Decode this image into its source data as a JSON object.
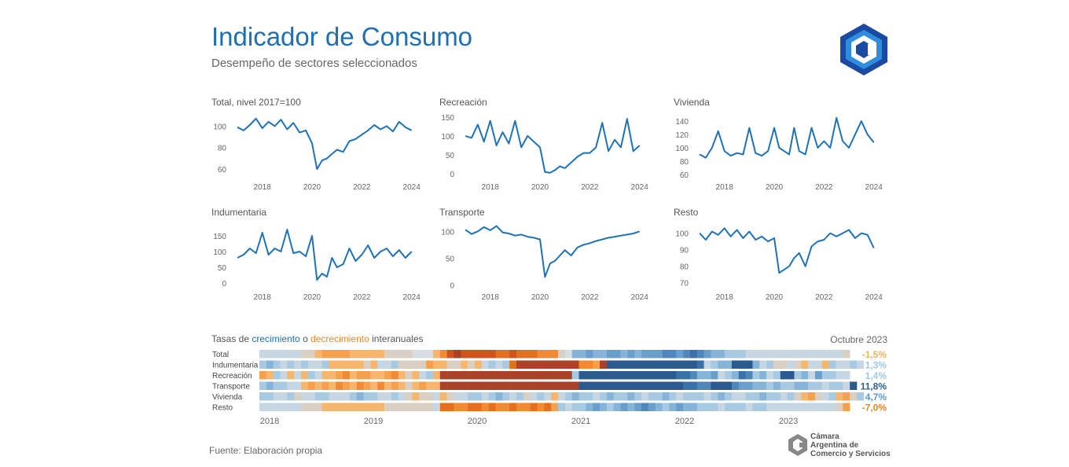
{
  "header": {
    "title": "Indicador de Consumo",
    "subtitle": "Desempeño de sectores seleccionados"
  },
  "colors": {
    "line": "#1f72b5",
    "title": "#1f6fb2",
    "growth": "#1f6fb2",
    "decline": "#e8862b"
  },
  "chart_data": [
    {
      "type": "line",
      "title": "Total, nivel 2017=100",
      "x_ticks": [
        "2018",
        "2020",
        "2022",
        "2024"
      ],
      "y_ticks": [
        60,
        80,
        100
      ],
      "ylim": [
        52,
        112
      ],
      "xlim": [
        2017.0,
        2024.2
      ],
      "series": [
        {
          "x": [
            2017.0,
            2017.25,
            2017.5,
            2017.75,
            2018.0,
            2018.25,
            2018.5,
            2018.75,
            2019.0,
            2019.25,
            2019.5,
            2019.75,
            2020.0,
            2020.2,
            2020.4,
            2020.6,
            2020.8,
            2021.0,
            2021.25,
            2021.5,
            2021.75,
            2022.0,
            2022.25,
            2022.5,
            2022.75,
            2023.0,
            2023.25,
            2023.5,
            2023.75,
            2024.0
          ],
          "values": [
            99,
            96,
            101,
            107,
            98,
            104,
            100,
            106,
            97,
            103,
            94,
            96,
            84,
            60,
            68,
            70,
            74,
            78,
            76,
            86,
            88,
            92,
            96,
            101,
            97,
            100,
            95,
            104,
            99,
            96
          ]
        }
      ]
    },
    {
      "type": "line",
      "title": "Recreación",
      "x_ticks": [
        "2018",
        "2020",
        "2022",
        "2024"
      ],
      "y_ticks": [
        0,
        50,
        100,
        150
      ],
      "ylim": [
        -10,
        160
      ],
      "xlim": [
        2017.0,
        2024.2
      ],
      "series": [
        {
          "x": [
            2017.0,
            2017.25,
            2017.5,
            2017.75,
            2018.0,
            2018.25,
            2018.5,
            2018.75,
            2019.0,
            2019.25,
            2019.5,
            2019.75,
            2020.0,
            2020.2,
            2020.4,
            2020.6,
            2020.8,
            2021.0,
            2021.25,
            2021.5,
            2021.75,
            2022.0,
            2022.25,
            2022.5,
            2022.75,
            2023.0,
            2023.25,
            2023.5,
            2023.75,
            2024.0
          ],
          "values": [
            100,
            95,
            130,
            85,
            140,
            75,
            110,
            80,
            140,
            70,
            100,
            85,
            70,
            5,
            3,
            10,
            20,
            15,
            30,
            45,
            55,
            55,
            70,
            135,
            60,
            90,
            70,
            145,
            60,
            75
          ]
        }
      ]
    },
    {
      "type": "line",
      "title": "Vivienda",
      "x_ticks": [
        "2018",
        "2020",
        "2022",
        "2024"
      ],
      "y_ticks": [
        60,
        80,
        100,
        120,
        140
      ],
      "ylim": [
        55,
        152
      ],
      "xlim": [
        2017.0,
        2024.2
      ],
      "series": [
        {
          "x": [
            2017.0,
            2017.25,
            2017.5,
            2017.75,
            2018.0,
            2018.25,
            2018.5,
            2018.75,
            2019.0,
            2019.25,
            2019.5,
            2019.75,
            2020.0,
            2020.2,
            2020.4,
            2020.6,
            2020.8,
            2021.0,
            2021.25,
            2021.5,
            2021.75,
            2022.0,
            2022.25,
            2022.5,
            2022.75,
            2023.0,
            2023.25,
            2023.5,
            2023.75,
            2024.0
          ],
          "values": [
            90,
            85,
            100,
            125,
            95,
            88,
            92,
            90,
            130,
            92,
            88,
            95,
            130,
            100,
            95,
            90,
            130,
            95,
            90,
            130,
            100,
            110,
            100,
            145,
            110,
            100,
            120,
            140,
            120,
            108
          ]
        }
      ]
    },
    {
      "type": "line",
      "title": "Indumentaria",
      "x_ticks": [
        "2018",
        "2020",
        "2022",
        "2024"
      ],
      "y_ticks": [
        0,
        50,
        100,
        150
      ],
      "ylim": [
        -15,
        190
      ],
      "xlim": [
        2017.0,
        2024.2
      ],
      "series": [
        {
          "x": [
            2017.0,
            2017.25,
            2017.5,
            2017.75,
            2018.0,
            2018.25,
            2018.5,
            2018.75,
            2019.0,
            2019.25,
            2019.5,
            2019.75,
            2020.0,
            2020.2,
            2020.4,
            2020.6,
            2020.8,
            2021.0,
            2021.25,
            2021.5,
            2021.75,
            2022.0,
            2022.25,
            2022.5,
            2022.75,
            2023.0,
            2023.25,
            2023.5,
            2023.75,
            2024.0
          ],
          "values": [
            80,
            90,
            110,
            95,
            160,
            90,
            110,
            100,
            170,
            95,
            100,
            85,
            150,
            10,
            30,
            20,
            80,
            50,
            60,
            110,
            70,
            90,
            120,
            80,
            100,
            110,
            85,
            105,
            80,
            100
          ]
        }
      ]
    },
    {
      "type": "line",
      "title": "Transporte",
      "x_ticks": [
        "2018",
        "2020",
        "2022",
        "2024"
      ],
      "y_ticks": [
        0,
        50,
        100
      ],
      "ylim": [
        -5,
        115
      ],
      "xlim": [
        2017.0,
        2024.2
      ],
      "series": [
        {
          "x": [
            2017.0,
            2017.25,
            2017.5,
            2017.75,
            2018.0,
            2018.25,
            2018.5,
            2018.75,
            2019.0,
            2019.25,
            2019.5,
            2019.75,
            2020.0,
            2020.2,
            2020.4,
            2020.6,
            2020.8,
            2021.0,
            2021.25,
            2021.5,
            2021.75,
            2022.0,
            2022.25,
            2022.5,
            2022.75,
            2023.0,
            2023.25,
            2023.5,
            2023.75,
            2024.0
          ],
          "values": [
            103,
            95,
            100,
            108,
            102,
            110,
            98,
            96,
            92,
            94,
            90,
            88,
            85,
            15,
            40,
            45,
            55,
            65,
            55,
            70,
            75,
            78,
            82,
            85,
            88,
            90,
            92,
            94,
            96,
            100
          ]
        }
      ]
    },
    {
      "type": "line",
      "title": "Resto",
      "x_ticks": [
        "2018",
        "2020",
        "2022",
        "2024"
      ],
      "y_ticks": [
        70,
        80,
        90,
        100
      ],
      "ylim": [
        67,
        106
      ],
      "xlim": [
        2017.0,
        2024.2
      ],
      "series": [
        {
          "x": [
            2017.0,
            2017.25,
            2017.5,
            2017.75,
            2018.0,
            2018.25,
            2018.5,
            2018.75,
            2019.0,
            2019.25,
            2019.5,
            2019.75,
            2020.0,
            2020.2,
            2020.4,
            2020.6,
            2020.8,
            2021.0,
            2021.25,
            2021.5,
            2021.75,
            2022.0,
            2022.25,
            2022.5,
            2022.75,
            2023.0,
            2023.25,
            2023.5,
            2023.75,
            2024.0
          ],
          "values": [
            100,
            96,
            101,
            99,
            103,
            98,
            102,
            97,
            101,
            96,
            98,
            95,
            97,
            76,
            78,
            80,
            85,
            88,
            80,
            92,
            95,
            96,
            100,
            98,
            100,
            102,
            97,
            100,
            99,
            91
          ]
        }
      ]
    },
    {
      "type": "heatmap",
      "title_parts": [
        "Tasas de ",
        "crecimiento",
        " o ",
        "decrecimiento",
        " interanuales"
      ],
      "date": "Octubre 2023",
      "x_ticks": [
        "2018",
        "2019",
        "2020",
        "2021",
        "2022",
        "2023"
      ],
      "rows": [
        {
          "name": "Total",
          "last": "-1,5%",
          "last_color": "#f0b262",
          "values": [
            1,
            1,
            1,
            1,
            1,
            1,
            -1,
            -1,
            -2,
            -3,
            -3,
            -3,
            -3,
            -2,
            -2,
            -2,
            -2,
            -2,
            -1,
            -1,
            -1,
            -1,
            0,
            0,
            0,
            -2,
            -4,
            -6,
            -7,
            -6,
            -6,
            -6,
            -6,
            -6,
            -5,
            -5,
            -6,
            -5,
            -5,
            -5,
            -4,
            -4,
            -4,
            -1,
            0,
            3,
            3,
            4,
            3,
            3,
            4,
            4,
            3,
            4,
            3,
            4,
            4,
            4,
            5,
            5,
            4,
            5,
            6,
            5,
            4,
            3,
            3,
            2,
            2,
            2,
            1,
            1,
            1,
            1,
            1,
            1,
            1,
            1,
            1,
            1,
            1,
            1,
            1,
            1,
            -1
          ]
        },
        {
          "name": "Indumentaria",
          "last": "1,3%",
          "last_color": "#9ecae1",
          "values": [
            2,
            3,
            2,
            1,
            2,
            1,
            2,
            1,
            1,
            2,
            -2,
            -2,
            -2,
            -2,
            -2,
            -1,
            -2,
            1,
            1,
            2,
            -1,
            -1,
            -1,
            -1,
            -3,
            -2,
            -2,
            -1,
            -1,
            -2,
            -1,
            -2,
            1,
            2,
            1,
            2,
            -5,
            -7,
            -7,
            -7,
            -7,
            -7,
            -7,
            -7,
            -7,
            -7,
            -4,
            -4,
            -3,
            -7,
            7,
            7,
            7,
            7,
            7,
            7,
            7,
            7,
            7,
            7,
            7,
            7,
            7,
            6,
            1,
            2,
            3,
            3,
            7,
            7,
            7,
            3,
            1,
            2,
            -1,
            -1,
            1,
            -1,
            -2,
            1,
            1,
            -2,
            2,
            1,
            1,
            2,
            1
          ]
        },
        {
          "name": "Recreación",
          "last": "1,4%",
          "last_color": "#9ecae1",
          "values": [
            -3,
            -2,
            2,
            1,
            -2,
            1,
            -2,
            2,
            1,
            -2,
            -2,
            -3,
            -4,
            -2,
            -3,
            -3,
            -2,
            -2,
            -3,
            -4,
            -2,
            -1,
            -2,
            1,
            2,
            -2,
            -7,
            -7,
            -7,
            -7,
            -7,
            -7,
            -7,
            -7,
            -7,
            -7,
            -7,
            -7,
            -7,
            -7,
            -7,
            -7,
            -7,
            -7,
            -7,
            2,
            7,
            7,
            7,
            7,
            7,
            7,
            7,
            7,
            7,
            7,
            7,
            7,
            7,
            7,
            6,
            6,
            5,
            3,
            3,
            4,
            1,
            2,
            3,
            6,
            5,
            2,
            3,
            1,
            2,
            7,
            7,
            2,
            3,
            1,
            4,
            2,
            2,
            1,
            1
          ]
        },
        {
          "name": "Transporte",
          "last": "11,8%",
          "last_color": "#2f5f93",
          "values": [
            2,
            3,
            2,
            2,
            1,
            1,
            -2,
            -3,
            -2,
            -3,
            -2,
            -4,
            -3,
            -2,
            -4,
            -3,
            -2,
            -4,
            -2,
            -3,
            -2,
            -1,
            -2,
            -3,
            -2,
            -2,
            -7,
            -7,
            -7,
            -7,
            -7,
            -7,
            -7,
            -7,
            -7,
            -7,
            -7,
            -7,
            -7,
            -7,
            -7,
            -7,
            -7,
            -7,
            -7,
            -7,
            7,
            7,
            7,
            7,
            7,
            7,
            7,
            7,
            7,
            7,
            7,
            7,
            7,
            7,
            7,
            6,
            6,
            5,
            5,
            7,
            7,
            7,
            5,
            4,
            4,
            3,
            3,
            2,
            3,
            2,
            2,
            3,
            3,
            2,
            2,
            1,
            2,
            2,
            1,
            7
          ]
        },
        {
          "name": "Vivienda",
          "last": "4,7%",
          "last_color": "#5a9ccc",
          "values": [
            2,
            2,
            1,
            1,
            2,
            -1,
            1,
            1,
            2,
            2,
            1,
            1,
            1,
            2,
            3,
            2,
            2,
            1,
            1,
            2,
            1,
            -1,
            -2,
            -1,
            -1,
            1,
            -2,
            -1,
            1,
            1,
            2,
            2,
            1,
            2,
            3,
            2,
            1,
            2,
            -1,
            1,
            2,
            1,
            -2,
            1,
            2,
            3,
            2,
            2,
            1,
            2,
            3,
            2,
            2,
            3,
            2,
            1,
            2,
            2,
            3,
            2,
            1,
            2,
            2,
            2,
            1,
            2,
            3,
            2,
            1,
            1,
            2,
            2,
            3,
            2,
            2,
            1,
            2,
            -1,
            -2,
            -3,
            -1,
            1,
            2,
            -2,
            -3,
            -1,
            2
          ]
        },
        {
          "name": "Resto",
          "last": "-7,0%",
          "last_color": "#e8862b",
          "values": [
            1,
            1,
            1,
            1,
            1,
            1,
            -1,
            -1,
            -1,
            -2,
            -2,
            -2,
            -2,
            -2,
            -2,
            -2,
            -2,
            -2,
            -1,
            -1,
            -1,
            -1,
            -1,
            -1,
            -1,
            1,
            -5,
            -5,
            -4,
            -4,
            -5,
            -5,
            -4,
            -5,
            -4,
            -4,
            -5,
            -4,
            -4,
            -5,
            -4,
            -5,
            -3,
            2,
            1,
            2,
            2,
            3,
            4,
            3,
            2,
            3,
            4,
            3,
            4,
            5,
            4,
            3,
            2,
            3,
            4,
            3,
            3,
            2,
            2,
            2,
            1,
            2,
            2,
            2,
            1,
            2,
            2,
            1,
            1,
            1,
            1,
            1,
            1,
            1,
            1,
            1,
            1,
            -1,
            -3
          ]
        }
      ]
    }
  ],
  "footer": {
    "source": "Fuente: Elaboración propia",
    "org_line1": "Cámara",
    "org_line2": "Argentina de",
    "org_line3": "Comercio y Servicios"
  }
}
